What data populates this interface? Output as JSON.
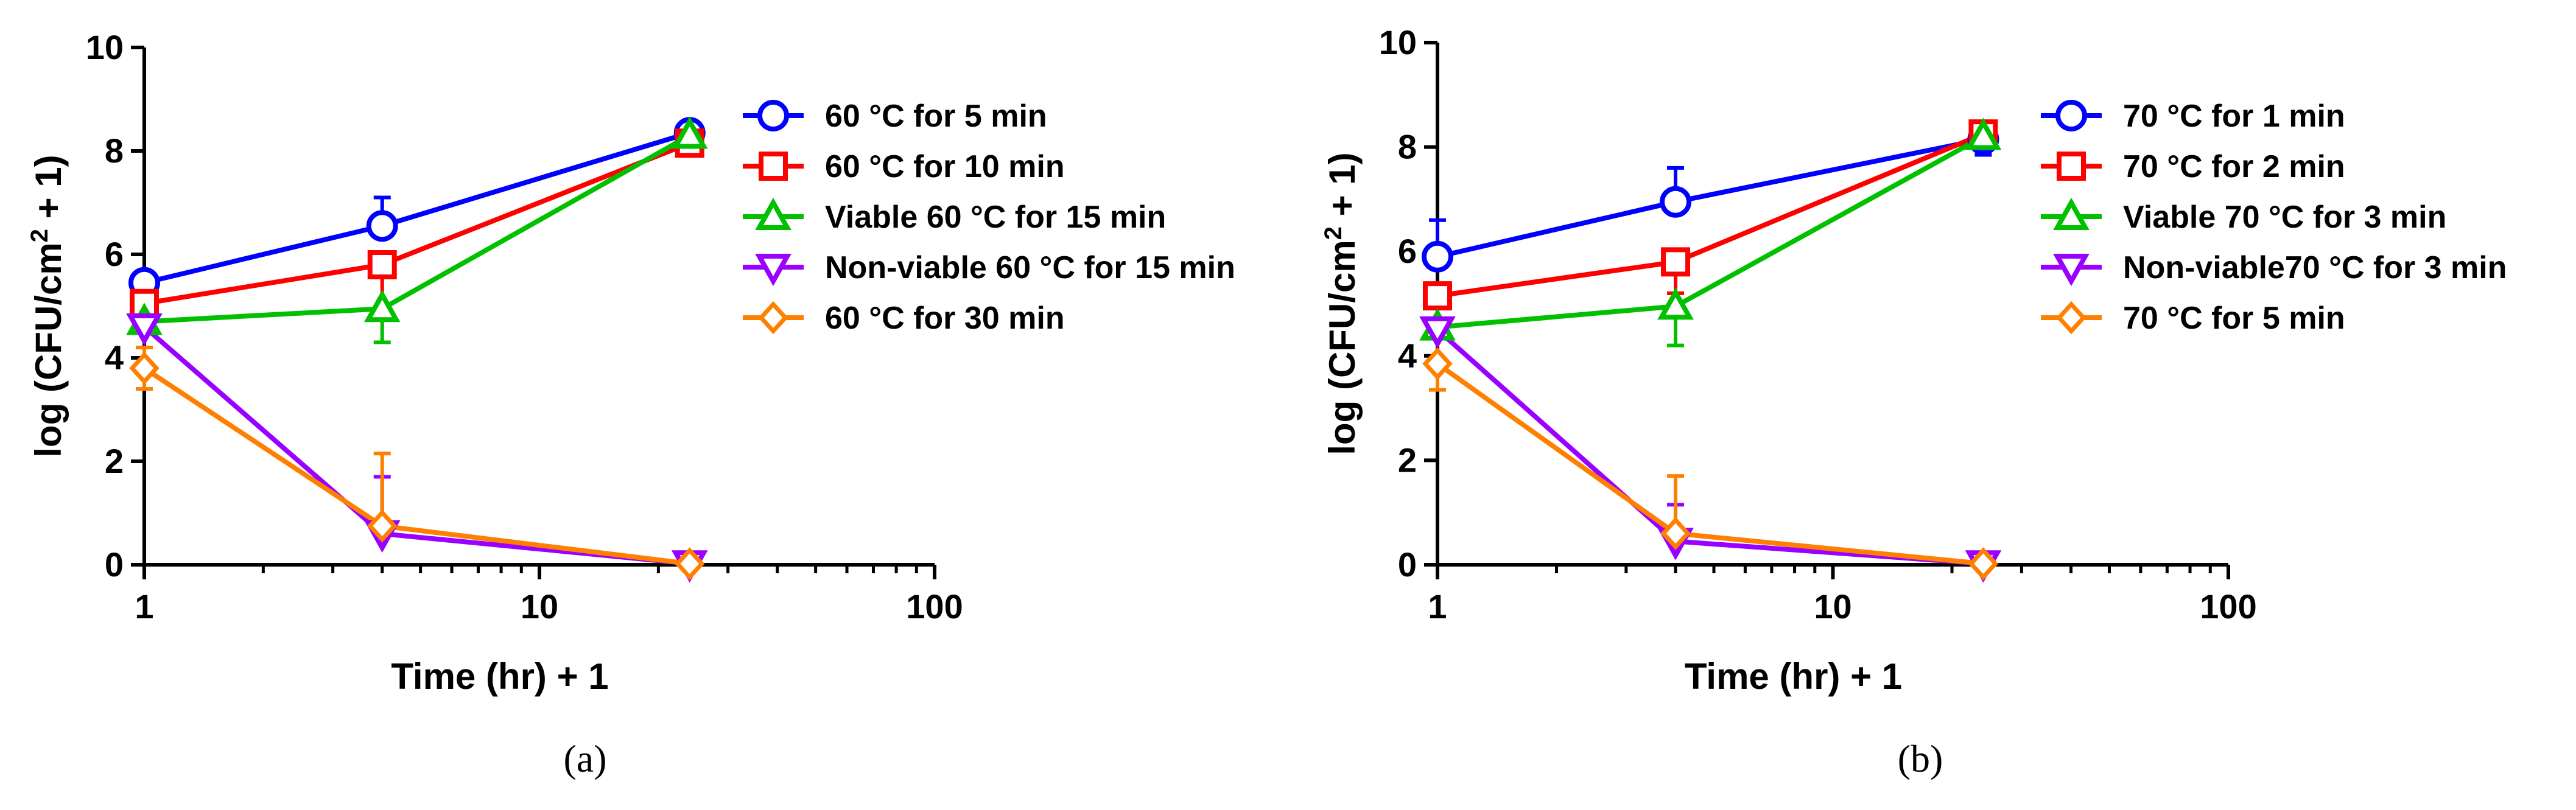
{
  "chart_data": [
    {
      "type": "line",
      "panel_label": "(a)",
      "xlabel": "Time (hr) + 1",
      "ylabel": "log (CFU/cm2 + 1)",
      "ylabel_main": "log (CFU/cm",
      "ylabel_sup": "2",
      "ylabel_tail": " + 1)",
      "xscale": "log",
      "xlim": [
        1,
        100
      ],
      "ylim": [
        0,
        10
      ],
      "x_ticks": [
        1,
        10,
        100
      ],
      "x_tick_labels": [
        "1",
        "10",
        "100"
      ],
      "y_ticks": [
        0,
        2,
        4,
        6,
        8,
        10
      ],
      "y_tick_labels": [
        "0",
        "2",
        "4",
        "6",
        "8",
        "10"
      ],
      "legend_position": "right",
      "series": [
        {
          "name": "60 °C for 5 min",
          "color": "#0000ff",
          "marker": "circle",
          "x": [
            1,
            4,
            24
          ],
          "y": [
            5.45,
            6.55,
            8.35
          ],
          "err_up": [
            0.2,
            0.55,
            0.15
          ],
          "err_down": [
            0.0,
            0.0,
            0.0
          ]
        },
        {
          "name": "60 °C for 10 min",
          "color": "#ff0000",
          "marker": "square",
          "x": [
            1,
            4,
            24
          ],
          "y": [
            5.05,
            5.8,
            8.15
          ],
          "err_up": [
            0.0,
            0.0,
            0.1
          ],
          "err_down": [
            0.0,
            0.9,
            0.0
          ]
        },
        {
          "name": "Viable 60 °C for 15 min",
          "color": "#00c000",
          "marker": "triangle-up",
          "x": [
            1,
            4,
            24
          ],
          "y": [
            4.7,
            4.95,
            8.3
          ],
          "err_up": [
            0.0,
            0.0,
            0.2
          ],
          "err_down": [
            0.0,
            0.65,
            0.0
          ]
        },
        {
          "name": "Non-viable 60 °C for 15 min",
          "color": "#9900ff",
          "marker": "triangle-down",
          "x": [
            1,
            4,
            24
          ],
          "y": [
            4.6,
            0.6,
            0.02
          ],
          "err_up": [
            0.0,
            1.1,
            0.0
          ],
          "err_down": [
            0.0,
            0.0,
            0.0
          ]
        },
        {
          "name": "60 °C for 30 min",
          "color": "#ff8000",
          "marker": "diamond",
          "x": [
            1,
            4,
            24
          ],
          "y": [
            3.8,
            0.75,
            0.02
          ],
          "err_up": [
            0.4,
            1.4,
            0.0
          ],
          "err_down": [
            0.4,
            0.0,
            0.0
          ]
        }
      ]
    },
    {
      "type": "line",
      "panel_label": "(b)",
      "xlabel": "Time (hr) + 1",
      "ylabel": "log (CFU/cm2 + 1)",
      "ylabel_main": "log (CFU/cm",
      "ylabel_sup": "2",
      "ylabel_tail": " + 1)",
      "xscale": "log",
      "xlim": [
        1,
        100
      ],
      "ylim": [
        0,
        10
      ],
      "x_ticks": [
        1,
        10,
        100
      ],
      "x_tick_labels": [
        "1",
        "10",
        "100"
      ],
      "y_ticks": [
        0,
        2,
        4,
        6,
        8,
        10
      ],
      "y_tick_labels": [
        "0",
        "2",
        "4",
        "6",
        "8",
        "10"
      ],
      "legend_position": "right",
      "series": [
        {
          "name": "70 °C for 1 min",
          "color": "#0000ff",
          "marker": "circle",
          "x": [
            1,
            4,
            24
          ],
          "y": [
            5.9,
            6.95,
            8.15
          ],
          "err_up": [
            0.7,
            0.65,
            0.0
          ],
          "err_down": [
            0.0,
            0.0,
            0.3
          ]
        },
        {
          "name": "70 °C for 2 min",
          "color": "#ff0000",
          "marker": "square",
          "x": [
            1,
            4,
            24
          ],
          "y": [
            5.15,
            5.8,
            8.25
          ],
          "err_up": [
            0.0,
            0.0,
            0.15
          ],
          "err_down": [
            0.0,
            0.6,
            0.0
          ]
        },
        {
          "name": "Viable 70 °C for 3 min",
          "color": "#00c000",
          "marker": "triangle-up",
          "x": [
            1,
            4,
            24
          ],
          "y": [
            4.55,
            4.95,
            8.2
          ],
          "err_up": [
            0.0,
            0.0,
            0.0
          ],
          "err_down": [
            0.0,
            0.75,
            0.0
          ]
        },
        {
          "name": "Non-viable70 °C for 3 min",
          "color": "#9900ff",
          "marker": "triangle-down",
          "x": [
            1,
            4,
            24
          ],
          "y": [
            4.5,
            0.45,
            0.02
          ],
          "err_up": [
            0.0,
            0.7,
            0.0
          ],
          "err_down": [
            0.0,
            0.0,
            0.0
          ]
        },
        {
          "name": "70 °C for 5 min",
          "color": "#ff8000",
          "marker": "diamond",
          "x": [
            1,
            4,
            24
          ],
          "y": [
            3.85,
            0.6,
            0.02
          ],
          "err_up": [
            0.0,
            1.1,
            0.0
          ],
          "err_down": [
            0.5,
            0.0,
            0.0
          ]
        }
      ]
    }
  ]
}
